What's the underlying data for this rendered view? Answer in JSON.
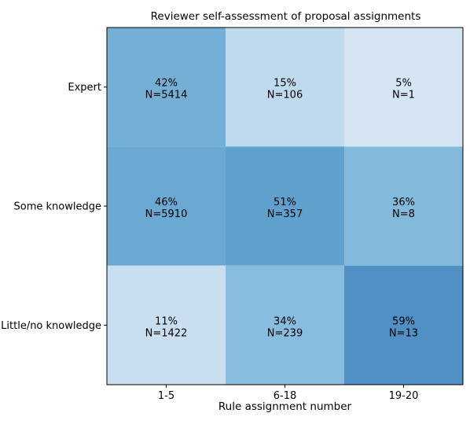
{
  "chart_data": {
    "type": "heatmap",
    "title": "Reviewer self-assessment of proposal assignments",
    "xlabel": "Rule assignment number",
    "ylabel": "",
    "x_categories": [
      "1-5",
      "6-18",
      "19-20"
    ],
    "y_categories": [
      "Expert",
      "Some knowledge",
      "Little/no knowledge"
    ],
    "cells": [
      [
        {
          "percent": "42%",
          "n": "N=5414",
          "value": 0.42
        },
        {
          "percent": "15%",
          "n": "N=106",
          "value": 0.15
        },
        {
          "percent": "5%",
          "n": "N=1",
          "value": 0.05
        }
      ],
      [
        {
          "percent": "46%",
          "n": "N=5910",
          "value": 0.46
        },
        {
          "percent": "51%",
          "n": "N=357",
          "value": 0.51
        },
        {
          "percent": "36%",
          "n": "N=8",
          "value": 0.36
        }
      ],
      [
        {
          "percent": "11%",
          "n": "N=1422",
          "value": 0.11
        },
        {
          "percent": "34%",
          "n": "N=239",
          "value": 0.34
        },
        {
          "percent": "59%",
          "n": "N=13",
          "value": 0.59
        }
      ]
    ],
    "colormap": "Blues",
    "grid": false,
    "legend": "none"
  }
}
